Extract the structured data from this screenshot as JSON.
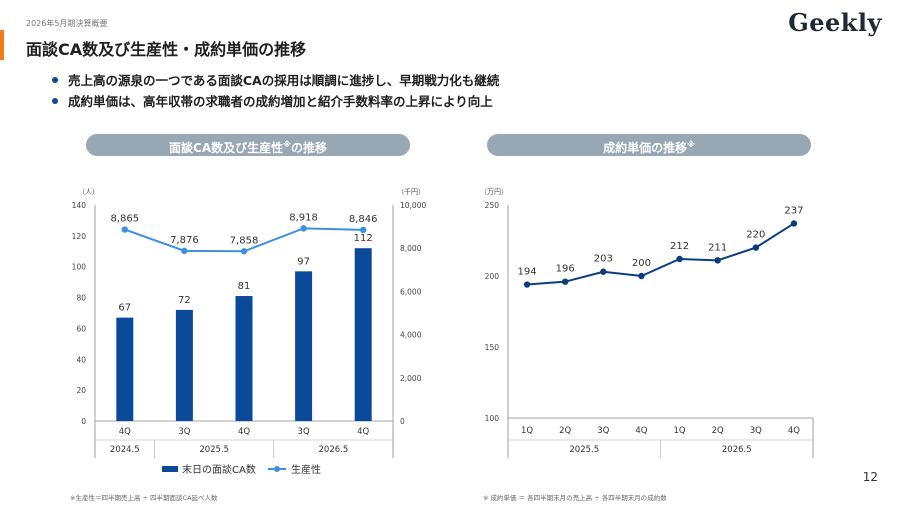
{
  "header": {
    "period": "2026年5月期決算概要",
    "title": "面談CA数及び生産性・成約単価の推移",
    "logo": "Geekly"
  },
  "bullets": [
    "売上高の源泉の一つである面談CAの採用は順調に進捗し、早期戦力化も継続",
    "成約単価は、高年収帯の求職者の成約増加と紹介手数料率の上昇により向上"
  ],
  "panels": {
    "left": {
      "title": "面談CA数及び生産性",
      "title_mark": "※",
      "title_suffix": "の推移"
    },
    "right": {
      "title": "成約単価の推移",
      "title_mark": "※"
    }
  },
  "colors": {
    "bar": "#0b4a9a",
    "line_light": "#3d8fe0",
    "line_dark": "#0b3e80",
    "pill": "#98a7b4",
    "accent": "#f07c1b"
  },
  "chart_data": [
    {
      "type": "bar",
      "categories": [
        "4Q",
        "3Q",
        "4Q",
        "3Q",
        "4Q"
      ],
      "groups": [
        {
          "label": "2024.5",
          "span": 1
        },
        {
          "label": "2025.5",
          "span": 2
        },
        {
          "label": "2026.5",
          "span": 2
        }
      ],
      "series": [
        {
          "name": "末日の面談CA数",
          "type": "bar",
          "axis": "left",
          "values": [
            67,
            72,
            81,
            97,
            112
          ]
        },
        {
          "name": "生産性",
          "type": "line",
          "axis": "right",
          "values": [
            8865,
            7876,
            7858,
            8918,
            8846
          ]
        }
      ],
      "left_unit": "（人）",
      "right_unit": "（千円）",
      "ylim_left": [
        0,
        140
      ],
      "ylim_right": [
        0,
        10000
      ],
      "yticks_left": [
        "0",
        "20",
        "40",
        "60",
        "80",
        "100",
        "120",
        "140"
      ],
      "yticks_right": [
        "0",
        "2,000",
        "4,000",
        "6,000",
        "8,000",
        "10,000"
      ],
      "value_labels_bar": [
        "67",
        "72",
        "81",
        "97",
        "112"
      ],
      "value_labels_line": [
        "8,865",
        "7,876",
        "7,858",
        "8,918",
        "8,846"
      ],
      "legend": [
        "末日の面談CA数",
        "生産性"
      ],
      "legend_position": "bottom"
    },
    {
      "type": "line",
      "categories": [
        "1Q",
        "2Q",
        "3Q",
        "4Q",
        "1Q",
        "2Q",
        "3Q",
        "4Q"
      ],
      "groups": [
        {
          "label": "2025.5",
          "span": 4
        },
        {
          "label": "2026.5",
          "span": 4
        }
      ],
      "values": [
        194,
        196,
        203,
        200,
        212,
        211,
        220,
        237
      ],
      "value_labels": [
        "194",
        "196",
        "203",
        "200",
        "212",
        "211",
        "220",
        "237"
      ],
      "unit": "（万円）",
      "ylim": [
        100,
        250
      ],
      "yticks": [
        "100",
        "150",
        "200",
        "250"
      ]
    }
  ],
  "footnotes": {
    "left": "※生産性＝四半期売上高 ÷ 四半期面談CA延べ人数",
    "right": "※ 成約単価 ＝ 各四半期末月の売上高 ÷ 各四半期末月の成約数"
  },
  "page_number": "12"
}
